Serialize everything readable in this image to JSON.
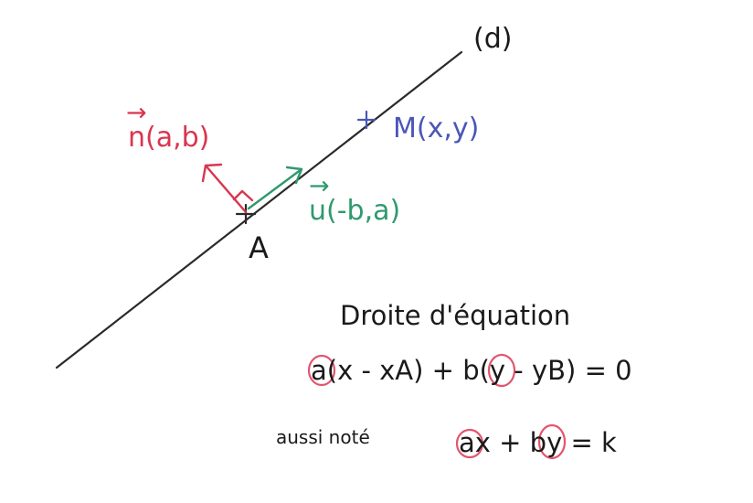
{
  "line_label": "(d)",
  "point_a_label": "A",
  "point_m_label": "M(x,y)",
  "normal_vector_label": "n(a,b)",
  "normal_vector_arrow": "→",
  "direction_vector_label": "u(-b,a)",
  "direction_vector_arrow": "→",
  "equation_title": "Droite d'équation",
  "equation_1": "a(x - xA) + b(y - yB) = 0",
  "equation_2_prefix": "aussi noté",
  "equation_2": "ax + by = k",
  "colors": {
    "line": "#2a2a2a",
    "normal_vector": "#d9364f",
    "direction_vector": "#2f9a6e",
    "point_m": "#4a56b8",
    "highlight_circle": "#e2566e",
    "text": "#1a1a1a"
  }
}
